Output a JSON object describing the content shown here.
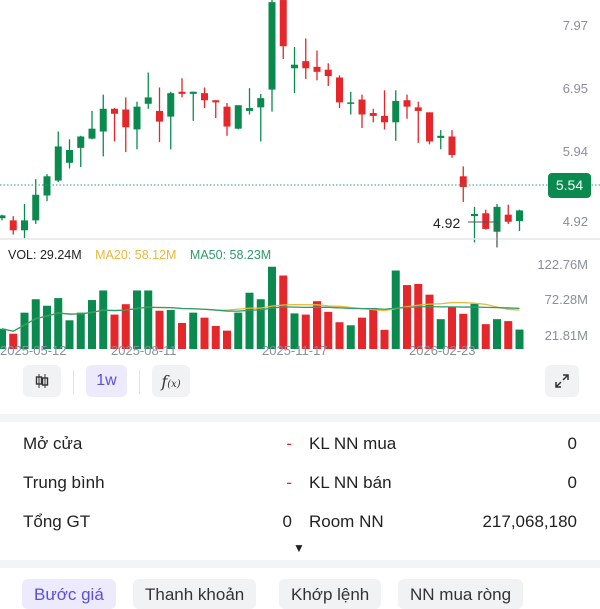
{
  "price_chart": {
    "type": "candlestick",
    "price_ticks": [
      "7.97",
      "6.95",
      "5.94",
      "4.92"
    ],
    "current_price": "5.54",
    "low_marker": "4.92",
    "up_color": "#0b8a4f",
    "down_color": "#e5262b",
    "candles": [
      [
        5.33,
        5.37,
        5.38,
        5.3
      ],
      [
        5.3,
        5.16,
        5.36,
        5.1
      ],
      [
        5.16,
        5.3,
        5.53,
        5.05
      ],
      [
        5.3,
        5.66,
        5.88,
        5.25
      ],
      [
        5.65,
        5.92,
        5.95,
        5.57
      ],
      [
        5.86,
        6.34,
        6.55,
        5.84
      ],
      [
        6.11,
        6.29,
        6.44,
        6.03
      ],
      [
        6.32,
        6.48,
        6.49,
        6.05
      ],
      [
        6.45,
        6.59,
        6.84,
        6.44
      ],
      [
        6.55,
        6.87,
        7.07,
        6.2
      ],
      [
        6.87,
        6.8,
        6.88,
        6.41
      ],
      [
        6.86,
        6.61,
        7.03,
        6.26
      ],
      [
        6.58,
        6.9,
        6.97,
        6.3
      ],
      [
        6.94,
        7.03,
        7.38,
        6.87
      ],
      [
        6.84,
        6.69,
        7.17,
        6.4
      ],
      [
        6.76,
        7.09,
        7.11,
        6.3
      ],
      [
        7.11,
        7.08,
        7.3,
        7.03
      ],
      [
        7.08,
        7.11,
        7.11,
        6.7
      ],
      [
        7.09,
        6.99,
        7.17,
        6.88
      ],
      [
        6.99,
        6.96,
        6.99,
        6.74
      ],
      [
        6.9,
        6.62,
        6.95,
        6.49
      ],
      [
        6.59,
        6.92,
        6.92,
        6.58
      ],
      [
        6.84,
        6.88,
        7.16,
        6.79
      ],
      [
        6.89,
        7.02,
        7.08,
        6.41
      ],
      [
        7.14,
        8.37,
        8.4,
        6.83
      ],
      [
        8.4,
        7.75,
        8.4,
        7.57
      ],
      [
        7.44,
        7.49,
        7.74,
        7.09
      ],
      [
        7.54,
        7.44,
        7.86,
        7.29
      ],
      [
        7.46,
        7.39,
        7.69,
        7.27
      ],
      [
        7.42,
        7.33,
        7.51,
        7.19
      ],
      [
        7.31,
        6.96,
        7.34,
        6.88
      ],
      [
        6.94,
        6.96,
        7.11,
        6.79
      ],
      [
        7.0,
        6.79,
        7.07,
        6.6
      ],
      [
        6.81,
        6.77,
        6.87,
        6.68
      ],
      [
        6.77,
        6.68,
        7.13,
        6.58
      ],
      [
        6.68,
        6.98,
        7.13,
        6.42
      ],
      [
        6.99,
        6.9,
        7.07,
        6.73
      ],
      [
        6.89,
        6.84,
        6.97,
        6.39
      ],
      [
        6.82,
        6.41,
        6.82,
        6.37
      ],
      [
        6.46,
        6.49,
        6.57,
        6.3
      ],
      [
        6.48,
        6.22,
        6.57,
        6.18
      ],
      [
        5.92,
        5.77,
        6.06,
        5.56
      ],
      [
        5.36,
        5.39,
        5.49,
        4.99
      ],
      [
        5.4,
        5.18,
        5.45,
        5.17
      ],
      [
        5.14,
        5.49,
        5.53,
        4.92
      ],
      [
        5.38,
        5.28,
        5.52,
        5.25
      ],
      [
        5.29,
        5.44,
        5.45,
        5.15
      ]
    ]
  },
  "volume_chart": {
    "type": "bar",
    "legend": {
      "vol": "VOL: 29.24M",
      "ma20": "MA20: 58.12M",
      "ma50": "MA50: 58.23M"
    },
    "ma20_color": "#e8b93a",
    "ma50_color": "#2e9b6a",
    "ticks": [
      "122.76M",
      "72.28M",
      "21.81M"
    ],
    "values_m": [
      30.5,
      23.0,
      54.7,
      74.9,
      65.1,
      76.6,
      43.2,
      54.7,
      73.7,
      88.1,
      51.8,
      67.4,
      88.1,
      88.1,
      57.6,
      58.8,
      39.2,
      54.7,
      47.2,
      34.6,
      27.6,
      54.7,
      84.7,
      74.9,
      123.8,
      110.6,
      53.6,
      51.8,
      72.0,
      55.9,
      40.3,
      35.7,
      47.2,
      61.6,
      28.8,
      118.1,
      96.2,
      97.9,
      81.8,
      44.9,
      63.4,
      53.0,
      68.0,
      37.4,
      44.9,
      42.0,
      29.24
    ]
  },
  "dates": [
    "2025-05-12",
    "2025-08-11",
    "2025-11-17",
    "2026-02-23"
  ],
  "toolbar": {
    "interval": "1w",
    "chart_type_icon": "candlestick-icon",
    "indicator_icon": "function-icon",
    "expand_icon": "expand-icon"
  },
  "stats": {
    "rows": [
      {
        "l1": "Mở cửa",
        "v1": "-",
        "l2": "KL NN mua",
        "v2": "0"
      },
      {
        "l1": "Trung bình",
        "v1": "-",
        "l2": "KL NN bán",
        "v2": "0"
      },
      {
        "l1": "Tổng GT",
        "v1": "0",
        "l2": "Room NN",
        "v2": "217,068,180"
      }
    ],
    "expand_arrow": "▼"
  },
  "tabs": [
    "Bước giá",
    "Thanh khoản",
    "Khớp lệnh",
    "NN mua ròng"
  ]
}
